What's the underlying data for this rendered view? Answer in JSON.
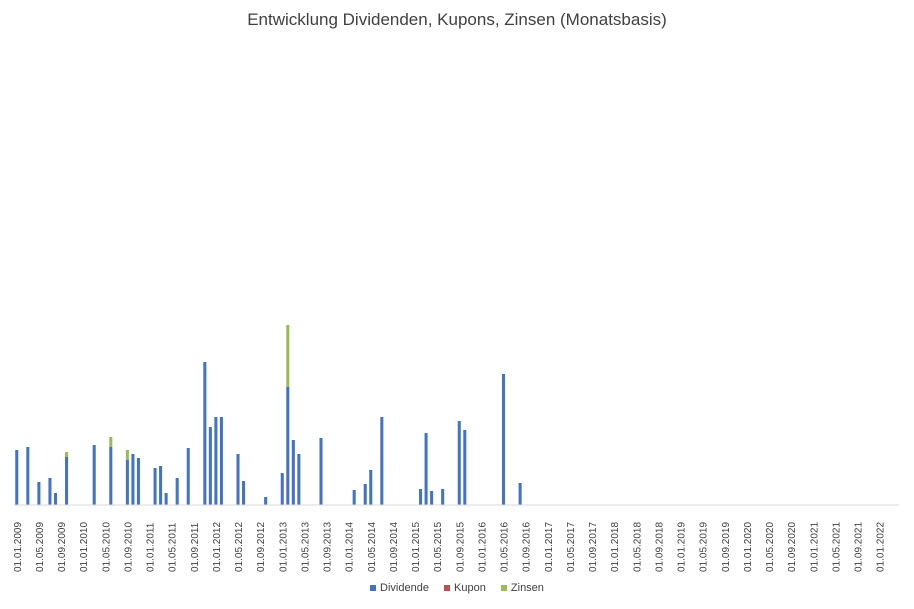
{
  "chart_data": {
    "type": "bar",
    "stacked": true,
    "title": "Entwicklung Dividenden, Kupons, Zinsen (Monatsbasis)",
    "xlabel": "",
    "ylabel": "",
    "grid": false,
    "legend_position": "bottom",
    "category_start": "2009-01",
    "category_count": 160,
    "tick_labels": [
      "01.01.2009",
      "01.05.2009",
      "01.09.2009",
      "01.01.2010",
      "01.05.2010",
      "01.09.2010",
      "01.01.2011",
      "01.05.2011",
      "01.09.2011",
      "01.01.2012",
      "01.05.2012",
      "01.09.2012",
      "01.01.2013",
      "01.05.2013",
      "01.09.2013",
      "01.01.2014",
      "01.05.2014",
      "01.09.2014",
      "01.01.2015",
      "01.05.2015",
      "01.09.2015",
      "01.01.2016",
      "01.05.2016",
      "01.09.2016",
      "01.01.2017",
      "01.05.2017",
      "01.09.2017",
      "01.01.2018",
      "01.05.2018",
      "01.09.2018",
      "01.01.2019",
      "01.05.2019",
      "01.09.2019",
      "01.01.2020",
      "01.05.2020",
      "01.09.2020",
      "01.01.2021",
      "01.05.2021",
      "01.09.2021",
      "01.01.2022"
    ],
    "ylim": [
      0,
      415
    ],
    "series": [
      {
        "name": "Dividende",
        "color": "#4472C4",
        "values": [
          55,
          0,
          58,
          0,
          23,
          0,
          27,
          12,
          0,
          48,
          0,
          0,
          0,
          0,
          60,
          0,
          0,
          58,
          0,
          0,
          45,
          51,
          47,
          0,
          0,
          37,
          39,
          12,
          0,
          27,
          0,
          57,
          0,
          0,
          143,
          78,
          88,
          88,
          0,
          0,
          51,
          24,
          0,
          0,
          0,
          8,
          0,
          0,
          32,
          118,
          65,
          51,
          0,
          0,
          0,
          67,
          0,
          0,
          0,
          0,
          0,
          15,
          0,
          21,
          35,
          0,
          88,
          0,
          0,
          0,
          0,
          0,
          0,
          16,
          72,
          14,
          0,
          16,
          0,
          0,
          84,
          75,
          0,
          0,
          0,
          0,
          0,
          0,
          131,
          0,
          0,
          22,
          0,
          0,
          0,
          0,
          0,
          0,
          0,
          0,
          0,
          0,
          0,
          0,
          0,
          0,
          0,
          0,
          0,
          0,
          0,
          0,
          0,
          0,
          0,
          0,
          0,
          0,
          0,
          0,
          0,
          0,
          0,
          0,
          0,
          0,
          0,
          0,
          0,
          0,
          0,
          0,
          0,
          0,
          0,
          0,
          0,
          0,
          0,
          0,
          0,
          0,
          0,
          0,
          0,
          0,
          0,
          0,
          0,
          0,
          0,
          0,
          0,
          0,
          0,
          0,
          0,
          0
        ]
      },
      {
        "name": "Kupon",
        "color": "#C0504D",
        "values": [
          0,
          0,
          0,
          0,
          0,
          0,
          0,
          0,
          0,
          0,
          0,
          0,
          0,
          0,
          0,
          0,
          0,
          0,
          0,
          0,
          0,
          0,
          0,
          0,
          0,
          0,
          0,
          0,
          0,
          0,
          0,
          0,
          0,
          0,
          0,
          0,
          0,
          0,
          0,
          0,
          0,
          0,
          0,
          0,
          0,
          0,
          0,
          0,
          0,
          0,
          0,
          0,
          0,
          0,
          0,
          0,
          0,
          0,
          0,
          0,
          0,
          0,
          0,
          0,
          0,
          0,
          0,
          0,
          0,
          0,
          0,
          0,
          0,
          0,
          0,
          0,
          0,
          0,
          0,
          0,
          0,
          0,
          0,
          0,
          0,
          0,
          0,
          0,
          0,
          0,
          0,
          0,
          0,
          0,
          0,
          0,
          0,
          0,
          0,
          0,
          0,
          0,
          0,
          0,
          0,
          0,
          0,
          0,
          0,
          0,
          0,
          0,
          0,
          0,
          0,
          0,
          0,
          0,
          0,
          0,
          0,
          0,
          0,
          0,
          0,
          0,
          0,
          0,
          0,
          0,
          0,
          0,
          0,
          0,
          0,
          0,
          0,
          0,
          0,
          0,
          0,
          0,
          0,
          0,
          0,
          0,
          0,
          0,
          0,
          0,
          0,
          0,
          0,
          0,
          0,
          0,
          0,
          0,
          0,
          0
        ]
      },
      {
        "name": "Zinsen",
        "color": "#9BBB59",
        "values": [
          0,
          0,
          0,
          0,
          0,
          0,
          0,
          0,
          0,
          5,
          0,
          0,
          0,
          0,
          0,
          0,
          0,
          10,
          0,
          0,
          10,
          0,
          0,
          0,
          0,
          0,
          0,
          0,
          0,
          0,
          0,
          0,
          0,
          0,
          0,
          0,
          0,
          0,
          0,
          0,
          0,
          0,
          0,
          0,
          0,
          0,
          0,
          0,
          0,
          62,
          0,
          0,
          0,
          0,
          0,
          0,
          0,
          0,
          0,
          0,
          0,
          0,
          0,
          0,
          0,
          0,
          0,
          0,
          0,
          0,
          0,
          0,
          0,
          0,
          0,
          0,
          0,
          0,
          0,
          0,
          0,
          0,
          0,
          0,
          0,
          0,
          0,
          0,
          0,
          0,
          0,
          0,
          0,
          0,
          0,
          0,
          0,
          0,
          0,
          0,
          0,
          0,
          0,
          0,
          0,
          0,
          0,
          0,
          0,
          0,
          0,
          0,
          0,
          0,
          0,
          0,
          0,
          0,
          0,
          0,
          0,
          0,
          0,
          0,
          0,
          0,
          0,
          0,
          0,
          0,
          0,
          0,
          0,
          0,
          0,
          0,
          0,
          0,
          0,
          0,
          0,
          0,
          0,
          0,
          0,
          0,
          0,
          0,
          0,
          0,
          0,
          0,
          0,
          0,
          0,
          0,
          0,
          0,
          0,
          0
        ]
      }
    ]
  }
}
